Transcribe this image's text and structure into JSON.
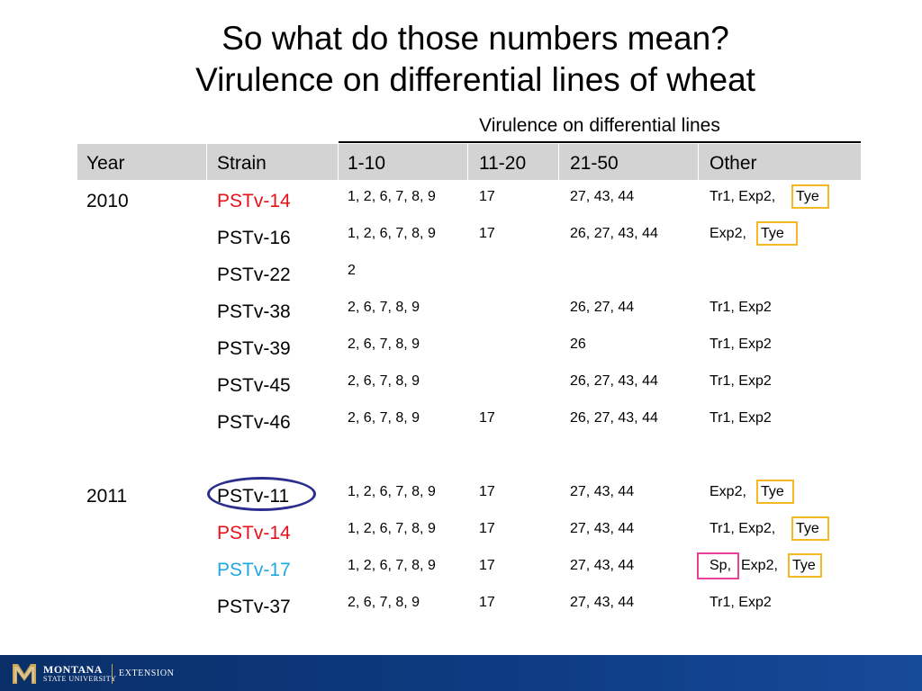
{
  "title": {
    "line1": "So what do those numbers mean?",
    "line2": "Virulence on differential lines of wheat"
  },
  "table": {
    "group_header": "Virulence on differential lines",
    "columns": [
      "Year",
      "Strain",
      "1-10",
      "11-20",
      "21-50",
      "Other"
    ],
    "rows": [
      {
        "year": "2010",
        "strain": "PSTv-14",
        "c1": "1, 2, 6, 7, 8, 9",
        "c2": "17",
        "c3": "27, 43, 44",
        "other_a": "Tr1, Exp2,",
        "other_b": "Tye"
      },
      {
        "year": "",
        "strain": "PSTv-16",
        "c1": "1, 2, 6, 7, 8, 9",
        "c2": "17",
        "c3": "26, 27, 43, 44",
        "other_a": "Exp2,",
        "other_b": "Tye"
      },
      {
        "year": "",
        "strain": "PSTv-22",
        "c1": "2",
        "c2": "",
        "c3": "",
        "other_a": "",
        "other_b": ""
      },
      {
        "year": "",
        "strain": "PSTv-38",
        "c1": "2, 6, 7, 8, 9",
        "c2": "",
        "c3": "26, 27, 44",
        "other_a": "Tr1, Exp2",
        "other_b": ""
      },
      {
        "year": "",
        "strain": "PSTv-39",
        "c1": "2, 6, 7, 8, 9",
        "c2": "",
        "c3": "26",
        "other_a": "Tr1, Exp2",
        "other_b": ""
      },
      {
        "year": "",
        "strain": "PSTv-45",
        "c1": "2, 6, 7, 8, 9",
        "c2": "",
        "c3": "26, 27, 43, 44",
        "other_a": "Tr1, Exp2",
        "other_b": ""
      },
      {
        "year": "",
        "strain": "PSTv-46",
        "c1": "2, 6, 7, 8, 9",
        "c2": "17",
        "c3": "26, 27, 43, 44",
        "other_a": "Tr1, Exp2",
        "other_b": ""
      },
      {
        "year": "2011",
        "strain": "PSTv-11",
        "c1": "1, 2, 6, 7, 8, 9",
        "c2": "17",
        "c3": "27, 43, 44",
        "other_a": "Exp2,",
        "other_b": "Tye"
      },
      {
        "year": "",
        "strain": "PSTv-14",
        "c1": "1, 2, 6, 7, 8, 9",
        "c2": "17",
        "c3": "27, 43, 44",
        "other_a": "Tr1, Exp2,",
        "other_b": "Tye"
      },
      {
        "year": "",
        "strain": "PSTv-17",
        "c1": "1, 2, 6, 7, 8, 9",
        "c2": "17",
        "c3": "27, 43, 44",
        "other_a": "Sp,",
        "other_mid": "Exp2,",
        "other_b": "Tye"
      },
      {
        "year": "",
        "strain": "PSTv-37",
        "c1": "2, 6, 7, 8, 9",
        "c2": "17",
        "c3": "27, 43, 44",
        "other_a": "Tr1, Exp2",
        "other_b": ""
      }
    ]
  },
  "colors": {
    "red_strain": "#e8101a",
    "blue_strain": "#1ea8e0",
    "highlight_box_yellow": "#f5b820",
    "highlight_box_pink": "#e8409a",
    "circle_navy": "#2b2e8c",
    "header_band": "#d3d3d3",
    "footer": "#0a2f68"
  },
  "footer": {
    "logo_main": "MONTANA",
    "logo_sub": "STATE UNIVERSITY",
    "logo_unit": "EXTENSION"
  }
}
